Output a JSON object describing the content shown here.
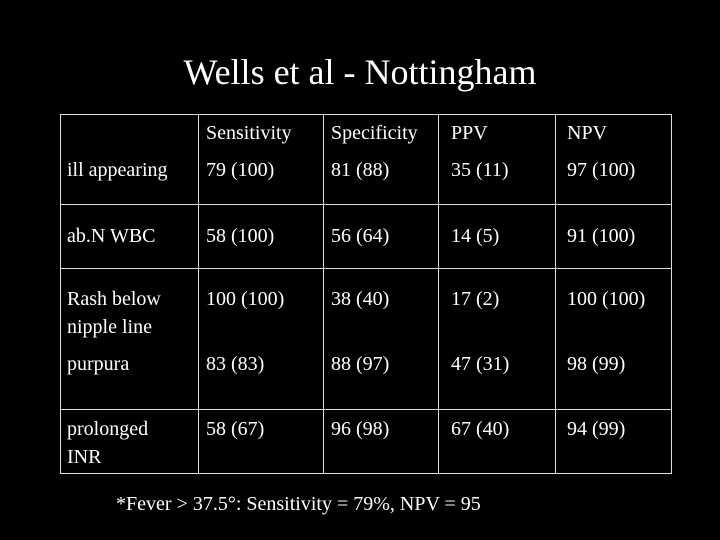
{
  "title": "Wells et al - Nottingham",
  "table": {
    "headers": [
      "",
      "Sensitivity",
      "Specificity",
      "PPV",
      "NPV"
    ],
    "rows": [
      [
        "ill appearing",
        "79 (100)",
        "81 (88)",
        "35 (11)",
        "97 (100)"
      ],
      [
        "ab.N WBC",
        "58 (100)",
        "56 (64)",
        "14 (5)",
        "91 (100)"
      ],
      [
        "Rash below\nnipple line",
        "100 (100)",
        "38 (40)",
        "17 (2)",
        "100 (100)"
      ],
      [
        "purpura",
        "83 (83)",
        "88 (97)",
        "47 (31)",
        "98 (99)"
      ],
      [
        "prolonged\nINR",
        "58 (67)",
        "96 (98)",
        "67 (40)",
        "94 (99)"
      ]
    ]
  },
  "footnote": "*Fever > 37.5°: Sensitivity = 79%, NPV = 95"
}
